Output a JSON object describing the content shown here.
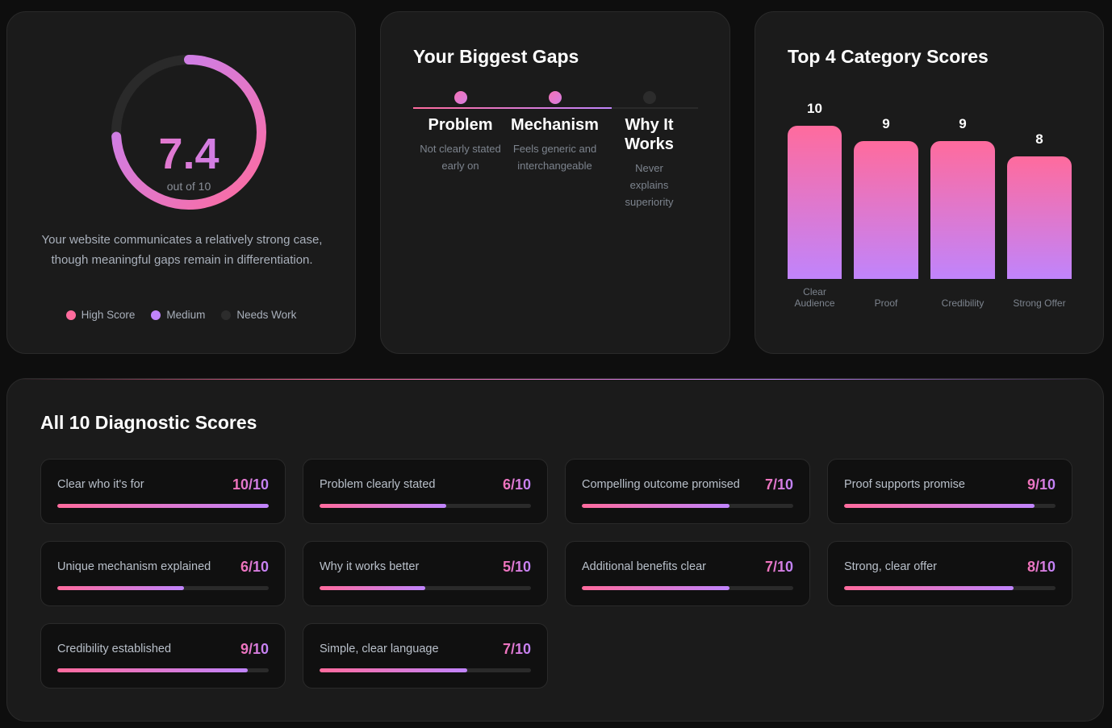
{
  "overall": {
    "score": "7.4",
    "score_value": 7.4,
    "max_label": "out of 10",
    "description": "Your website communicates a relatively strong case, though meaningful gaps remain in differentiation.",
    "legend": [
      {
        "label": "High Score",
        "color": "#ff6b9d"
      },
      {
        "label": "Medium",
        "color": "#c084fc"
      },
      {
        "label": "Needs Work",
        "color": "#2c2c2c"
      }
    ]
  },
  "gaps": {
    "title": "Your Biggest Gaps",
    "progress_steps": 2,
    "items": [
      {
        "title": "Problem",
        "text": "Not clearly stated early on",
        "active": true
      },
      {
        "title": "Mechanism",
        "text": "Feels generic and interchangeable",
        "active": true
      },
      {
        "title": "Why It Works",
        "text": "Never explains superiority",
        "active": false
      }
    ]
  },
  "chart_data": {
    "type": "bar",
    "title": "Top 4 Category Scores",
    "categories": [
      "Clear Audience",
      "Proof",
      "Credibility",
      "Strong Offer"
    ],
    "values": [
      10,
      9,
      9,
      8
    ],
    "ylim": [
      0,
      10
    ]
  },
  "diagnostics": {
    "title": "All 10 Diagnostic Scores",
    "items": [
      {
        "name": "Clear who it's for",
        "score": "10/10",
        "value": 10
      },
      {
        "name": "Problem clearly stated",
        "score": "6/10",
        "value": 6
      },
      {
        "name": "Compelling outcome promised",
        "score": "7/10",
        "value": 7
      },
      {
        "name": "Proof supports promise",
        "score": "9/10",
        "value": 9
      },
      {
        "name": "Unique mechanism explained",
        "score": "6/10",
        "value": 6
      },
      {
        "name": "Why it works better",
        "score": "5/10",
        "value": 5
      },
      {
        "name": "Additional benefits clear",
        "score": "7/10",
        "value": 7
      },
      {
        "name": "Strong, clear offer",
        "score": "8/10",
        "value": 8
      },
      {
        "name": "Credibility established",
        "score": "9/10",
        "value": 9
      },
      {
        "name": "Simple, clear language",
        "score": "7/10",
        "value": 7
      }
    ]
  }
}
